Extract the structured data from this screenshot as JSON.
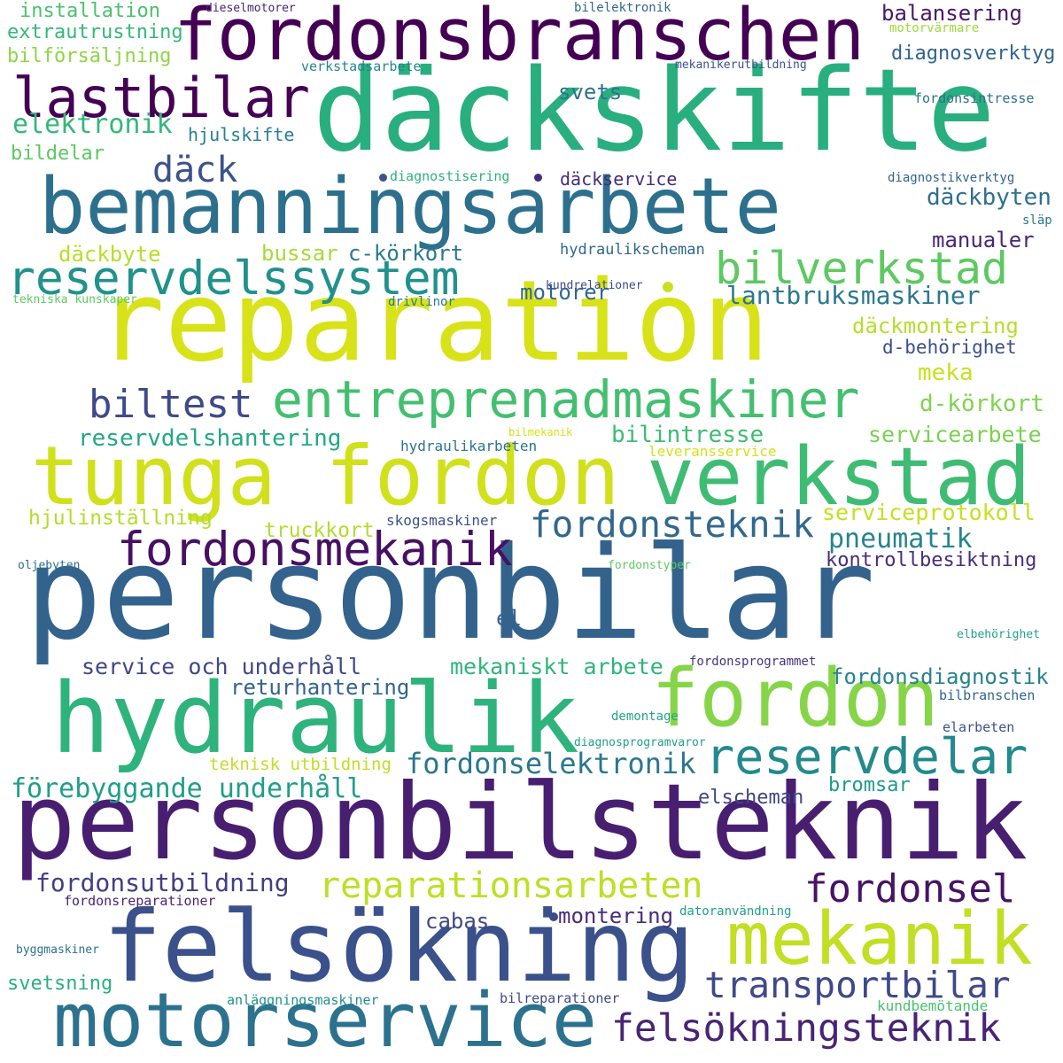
{
  "words": [
    {
      "text": "personbilar",
      "color": "#33638d",
      "weight": 1.0
    },
    {
      "text": "däckskifte",
      "color": "#29af7f",
      "weight": 0.95
    },
    {
      "text": "reparation",
      "color": "#d8e219",
      "weight": 0.94
    },
    {
      "text": "personbilsteknik",
      "color": "#481f70",
      "weight": 0.88
    },
    {
      "text": "hydraulik",
      "color": "#2eb37c",
      "weight": 0.78
    },
    {
      "text": "felsökning",
      "color": "#3b518b",
      "weight": 0.78
    },
    {
      "text": "fordonsbranschen",
      "color": "#440154",
      "weight": 0.72
    },
    {
      "text": "bemanningsarbete",
      "color": "#2d708e",
      "weight": 0.72
    },
    {
      "text": "tunga fordon",
      "color": "#d0e11c",
      "weight": 0.7
    },
    {
      "text": "verkstad",
      "color": "#3fbc73",
      "weight": 0.7
    },
    {
      "text": "fordon",
      "color": "#86d549",
      "weight": 0.68
    },
    {
      "text": "motorservice",
      "color": "#2c728e",
      "weight": 0.68
    },
    {
      "text": "mekanik",
      "color": "#c2df23",
      "weight": 0.6
    },
    {
      "text": "lastbilar",
      "color": "#440154",
      "weight": 0.5
    },
    {
      "text": "entreprenadmaskiner",
      "color": "#44bf70",
      "weight": 0.5
    },
    {
      "text": "reservdelar",
      "color": "#238a8d",
      "weight": 0.46
    },
    {
      "text": "reservdelssystem",
      "color": "#21918c",
      "weight": 0.44
    },
    {
      "text": "fordonsmekanik",
      "color": "#471063",
      "weight": 0.44
    },
    {
      "text": "bilverkstad",
      "color": "#5ec962",
      "weight": 0.42
    },
    {
      "text": "reparationsarbeten",
      "color": "#bddf26",
      "weight": 0.4
    },
    {
      "text": "felsökningsteknik",
      "color": "#482475",
      "weight": 0.4
    },
    {
      "text": "transportbilar",
      "color": "#3e4989",
      "weight": 0.38
    },
    {
      "text": "fordonsel",
      "color": "#471365",
      "weight": 0.36
    },
    {
      "text": "fordonsteknik",
      "color": "#31688e",
      "weight": 0.34
    },
    {
      "text": "biltest",
      "color": "#3e4a89",
      "weight": 0.32
    },
    {
      "text": "förebyggande underhåll",
      "color": "#1f9e89",
      "weight": 0.24
    },
    {
      "text": "fordonselektronik",
      "color": "#2a778e",
      "weight": 0.24
    },
    {
      "text": "fordonsutbildning",
      "color": "#433e85",
      "weight": 0.22
    },
    {
      "text": "däck",
      "color": "#3b528b",
      "weight": 0.26
    },
    {
      "text": "elektronik",
      "color": "#35b779",
      "weight": 0.22
    },
    {
      "text": "pneumatik",
      "color": "#25848e",
      "weight": 0.22
    },
    {
      "text": "lantbruksmaskiner",
      "color": "#2a788e",
      "weight": 0.2
    },
    {
      "text": "reservdelshantering",
      "color": "#22a884",
      "weight": 0.2
    },
    {
      "text": "bilintresse",
      "color": "#3dbc74",
      "weight": 0.2
    },
    {
      "text": "mekaniskt arbete",
      "color": "#2fb47c",
      "weight": 0.2
    },
    {
      "text": "service och underhåll",
      "color": "#3f4788",
      "weight": 0.2
    },
    {
      "text": "fordonsdiagnostik",
      "color": "#26828e",
      "weight": 0.18
    },
    {
      "text": "motorer",
      "color": "#31678e",
      "weight": 0.18
    },
    {
      "text": "däckbyten",
      "color": "#2e6f8e",
      "weight": 0.18
    },
    {
      "text": "servicearbete",
      "color": "#7ad151",
      "weight": 0.17
    },
    {
      "text": "serviceprotokoll",
      "color": "#c5e021",
      "weight": 0.17
    },
    {
      "text": "d-körkort",
      "color": "#7fd34e",
      "weight": 0.17
    },
    {
      "text": "däckmontering",
      "color": "#b5de2b",
      "weight": 0.17
    },
    {
      "text": "meka",
      "color": "#c8e020",
      "weight": 0.17
    },
    {
      "text": "returhantering",
      "color": "#32648e",
      "weight": 0.17
    },
    {
      "text": "manualer",
      "color": "#482878",
      "weight": 0.16
    },
    {
      "text": "balansering",
      "color": "#481769",
      "weight": 0.16
    },
    {
      "text": "däckbyte",
      "color": "#b8de29",
      "weight": 0.16
    },
    {
      "text": "bussar",
      "color": "#a5db36",
      "weight": 0.16
    },
    {
      "text": "c-körkort",
      "color": "#2a788e",
      "weight": 0.16
    },
    {
      "text": "hjulinställning",
      "color": "#b2dd2d",
      "weight": 0.15
    },
    {
      "text": "truckkort",
      "color": "#b2dd2d",
      "weight": 0.15
    },
    {
      "text": "kontrollbesiktning",
      "color": "#472d7b",
      "weight": 0.15
    },
    {
      "text": "montering",
      "color": "#472c7a",
      "weight": 0.15
    },
    {
      "text": "cabas",
      "color": "#3f4889",
      "weight": 0.14
    },
    {
      "text": "bromsar",
      "color": "#1e9b8a",
      "weight": 0.14
    },
    {
      "text": "elscheman",
      "color": "#404688",
      "weight": 0.14
    },
    {
      "text": "svetsning",
      "color": "#2ab07f",
      "weight": 0.14
    },
    {
      "text": "svets",
      "color": "#2c738e",
      "weight": 0.14
    },
    {
      "text": "installation",
      "color": "#4ac16d",
      "weight": 0.14
    },
    {
      "text": "extrautrustning",
      "color": "#35b779",
      "weight": 0.14
    },
    {
      "text": "bilförsäljning",
      "color": "#8ed645",
      "weight": 0.14
    },
    {
      "text": "hjulskifte",
      "color": "#26818e",
      "weight": 0.14
    },
    {
      "text": "bildelar",
      "color": "#5cc863",
      "weight": 0.14
    },
    {
      "text": "däckservice",
      "color": "#472a7a",
      "weight": 0.13
    },
    {
      "text": "diagnosverktyg",
      "color": "#33638d",
      "weight": 0.13
    },
    {
      "text": "d-behörighet",
      "color": "#3d4e8a",
      "weight": 0.13
    },
    {
      "text": "el",
      "color": "#33638d",
      "weight": 0.14
    },
    {
      "text": "teknisk utbildning",
      "color": "#c0df25",
      "weight": 0.12
    },
    {
      "text": "hydraulikscheman",
      "color": "#31688e",
      "weight": 0.1
    },
    {
      "text": "skogsmaskiner",
      "color": "#3b528b",
      "weight": 0.1
    },
    {
      "text": "hydraulikarbeten",
      "color": "#2c728e",
      "weight": 0.1
    },
    {
      "text": "leveransservice",
      "color": "#d2e21b",
      "weight": 0.09
    },
    {
      "text": "anläggningsmaskiner",
      "color": "#218f8d",
      "weight": 0.09
    },
    {
      "text": "kundbemötande",
      "color": "#4ac16d",
      "weight": 0.09
    },
    {
      "text": "bilreparationer",
      "color": "#3e4989",
      "weight": 0.09
    },
    {
      "text": "datoranvändning",
      "color": "#1fa187",
      "weight": 0.08
    },
    {
      "text": "fordonsreparationer",
      "color": "#482475",
      "weight": 0.09
    },
    {
      "text": "diagnosprogramvaror",
      "color": "#1f9f88",
      "weight": 0.07
    },
    {
      "text": "elarbeten",
      "color": "#3b528b",
      "weight": 0.08
    },
    {
      "text": "bilbranschen",
      "color": "#33638d",
      "weight": 0.08
    },
    {
      "text": "demontage",
      "color": "#21a685",
      "weight": 0.08
    },
    {
      "text": "fordonsprogrammet",
      "color": "#46337e",
      "weight": 0.07
    },
    {
      "text": "elbehörighet",
      "color": "#20a486",
      "weight": 0.07
    },
    {
      "text": "fordonstyper",
      "color": "#5ec962",
      "weight": 0.07
    },
    {
      "text": "oljebyten",
      "color": "#2d708e",
      "weight": 0.07
    },
    {
      "text": "byggmaskiner",
      "color": "#2c728e",
      "weight": 0.07
    },
    {
      "text": "tekniska kunskaper",
      "color": "#5ec962",
      "weight": 0.07
    },
    {
      "text": "drivlinor",
      "color": "#2a788e",
      "weight": 0.08
    },
    {
      "text": "kundrelationer",
      "color": "#3e4a89",
      "weight": 0.07
    },
    {
      "text": "bilmekanik",
      "color": "#d2e21b",
      "weight": 0.06
    },
    {
      "text": "diagnostisering",
      "color": "#2db27d",
      "weight": 0.08
    },
    {
      "text": "diagnostikverktyg",
      "color": "#33638d",
      "weight": 0.07
    },
    {
      "text": "släp",
      "color": "#2a788e",
      "weight": 0.08
    },
    {
      "text": "dieselmotorer",
      "color": "#482475",
      "weight": 0.07
    },
    {
      "text": "bilelektronik",
      "color": "#31688e",
      "weight": 0.07
    },
    {
      "text": "motorvärmare",
      "color": "#a0da39",
      "weight": 0.07
    },
    {
      "text": "verkstadsarbete",
      "color": "#25848e",
      "weight": 0.08
    },
    {
      "text": "mekanikerutbildning",
      "color": "#3b528b",
      "weight": 0.07
    },
    {
      "text": "fordonsintresse",
      "color": "#2d708e",
      "weight": 0.08
    }
  ],
  "dots": [
    {
      "color": "#3b528b"
    },
    {
      "color": "#3e4a89"
    },
    {
      "color": "#c8e020"
    },
    {
      "color": "#472a7a"
    }
  ]
}
